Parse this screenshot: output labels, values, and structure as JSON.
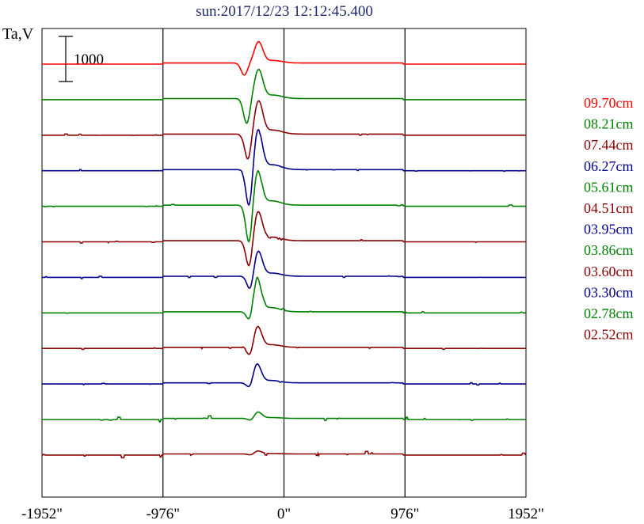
{
  "chart_data": {
    "type": "line",
    "title": "sun:2017/12/23 12:12:45.400",
    "ylabel": "Ta,V",
    "xlabel": "",
    "x_ticks": [
      {
        "value": -1952,
        "label": "-1952\""
      },
      {
        "value": -976,
        "label": "-976\""
      },
      {
        "value": 0,
        "label": "0\""
      },
      {
        "value": 976,
        "label": "976\""
      },
      {
        "value": 1952,
        "label": "1952\""
      }
    ],
    "xlim": [
      -1952,
      1952
    ],
    "vertical_gridlines_at": [
      -976,
      0,
      976
    ],
    "scale_bar": {
      "label": "1000",
      "value": 1000
    },
    "legend_placement": "right",
    "series_offset_step": 1000,
    "series": [
      {
        "name": "09.70cm",
        "color": "#ff0000",
        "peak_x": -205,
        "trough_x": -320,
        "peak_amp": 460,
        "trough_amp": 270,
        "noise": 0
      },
      {
        "name": "08.21cm",
        "color": "#008000",
        "peak_x": -205,
        "trough_x": -300,
        "peak_amp": 630,
        "trough_amp": 560,
        "noise": 0
      },
      {
        "name": "07.44cm",
        "color": "#8b0000",
        "peak_x": -205,
        "trough_x": -290,
        "peak_amp": 720,
        "trough_amp": 580,
        "noise": 1
      },
      {
        "name": "06.27cm",
        "color": "#00008b",
        "peak_x": -210,
        "trough_x": -280,
        "peak_amp": 880,
        "trough_amp": 880,
        "noise": 1
      },
      {
        "name": "05.61cm",
        "color": "#008000",
        "peak_x": -215,
        "trough_x": -280,
        "peak_amp": 770,
        "trough_amp": 920,
        "noise": 1
      },
      {
        "name": "04.51cm",
        "color": "#8b0000",
        "peak_x": -210,
        "trough_x": -280,
        "peak_amp": 640,
        "trough_amp": 620,
        "noise": 1
      },
      {
        "name": "03.95cm",
        "color": "#00008b",
        "peak_x": -210,
        "trough_x": -270,
        "peak_amp": 560,
        "trough_amp": 360,
        "noise": 1
      },
      {
        "name": "03.86cm",
        "color": "#008000",
        "peak_x": -220,
        "trough_x": -270,
        "peak_amp": 760,
        "trough_amp": 330,
        "noise": 1
      },
      {
        "name": "03.60cm",
        "color": "#8b0000",
        "peak_x": -215,
        "trough_x": -270,
        "peak_amp": 470,
        "trough_amp": 250,
        "noise": 1
      },
      {
        "name": "03.30cm",
        "color": "#00008b",
        "peak_x": -220,
        "trough_x": -270,
        "peak_amp": 430,
        "trough_amp": 180,
        "noise": 1
      },
      {
        "name": "02.78cm",
        "color": "#008000",
        "peak_x": -215,
        "trough_x": -260,
        "peak_amp": 150,
        "trough_amp": 80,
        "noise": 2
      },
      {
        "name": "02.52cm",
        "color": "#8b0000",
        "peak_x": -215,
        "trough_x": -260,
        "peak_amp": 70,
        "trough_amp": 40,
        "noise": 2
      }
    ]
  }
}
